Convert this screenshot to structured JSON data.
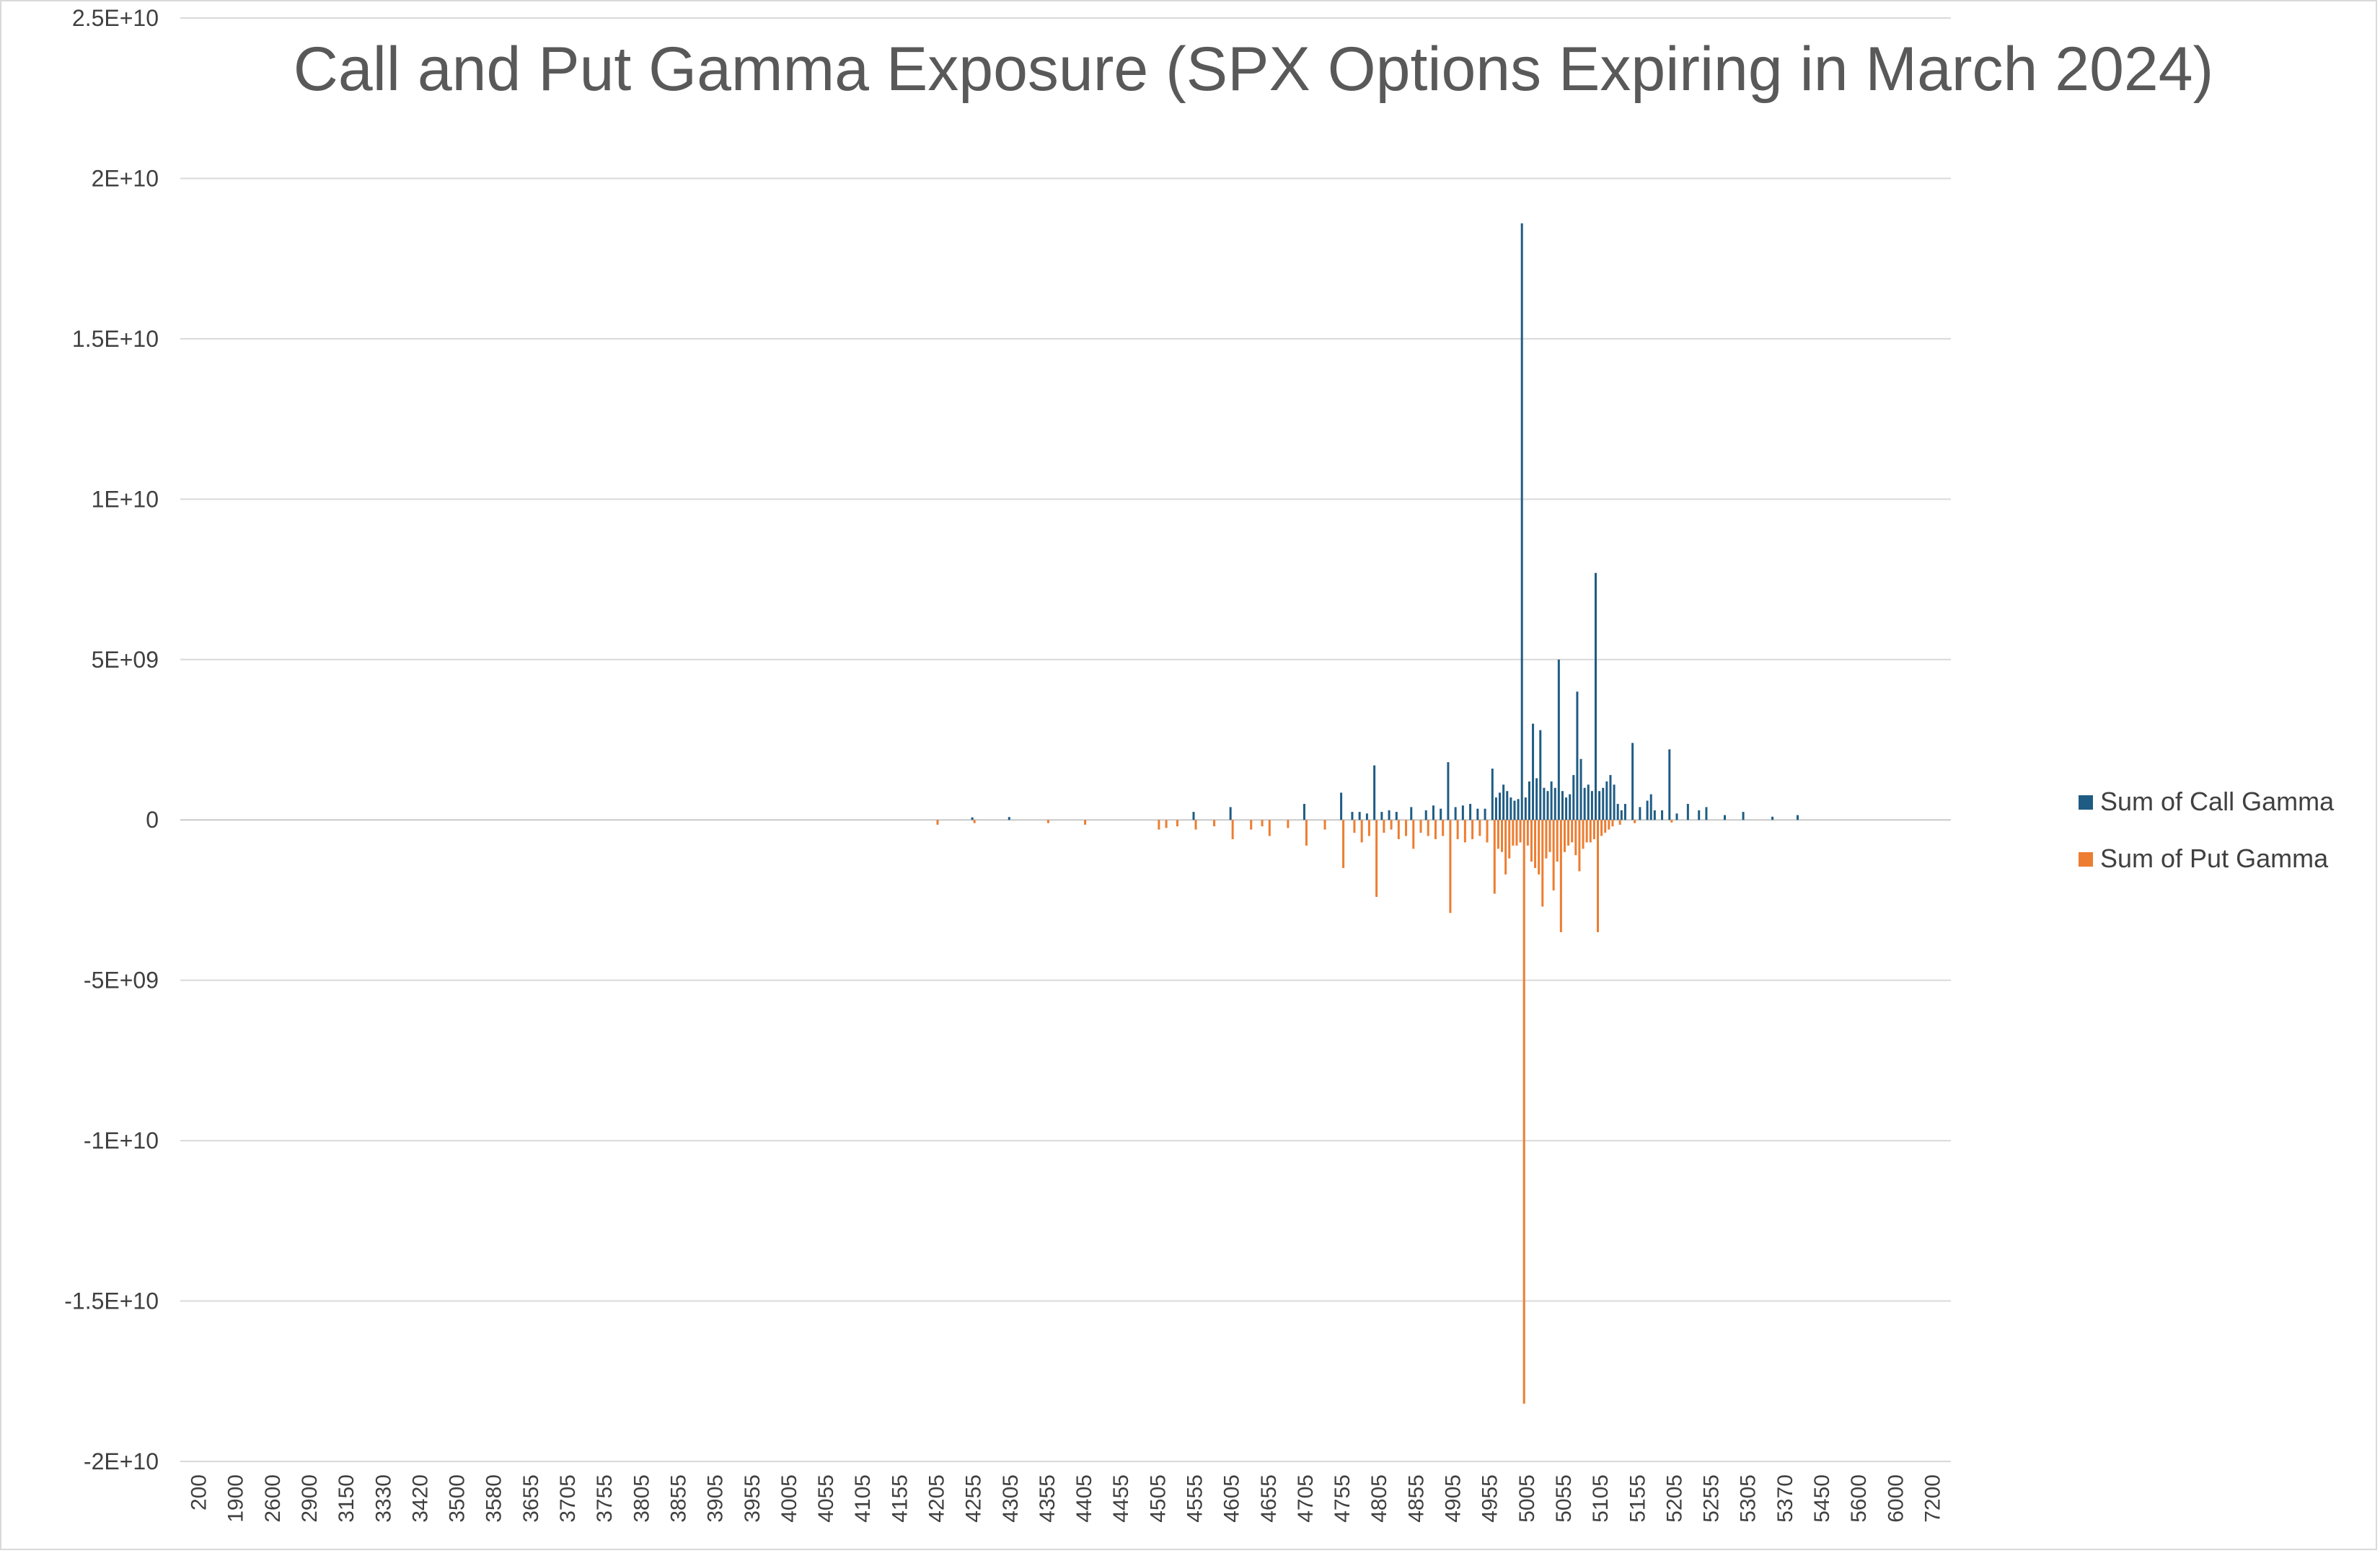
{
  "chart_data": {
    "type": "bar",
    "title": "Call and Put Gamma  Exposure (SPX Options Expiring in March 2024)",
    "xlabel": "",
    "ylabel": "",
    "ylim": [
      -20000000000,
      25000000000
    ],
    "y_ticks": [
      {
        "value": 25000000000,
        "label": "2.5E+10"
      },
      {
        "value": 20000000000,
        "label": "2E+10"
      },
      {
        "value": 15000000000,
        "label": "1.5E+10"
      },
      {
        "value": 10000000000,
        "label": "1E+10"
      },
      {
        "value": 5000000000,
        "label": "5E+09"
      },
      {
        "value": 0,
        "label": "0"
      },
      {
        "value": -5000000000,
        "label": "-5E+09"
      },
      {
        "value": -10000000000,
        "label": "-1E+10"
      },
      {
        "value": -15000000000,
        "label": "-1.5E+10"
      },
      {
        "value": -20000000000,
        "label": "-2E+10"
      }
    ],
    "x_tick_labels": [
      "200",
      "1900",
      "2600",
      "2900",
      "3150",
      "3330",
      "3420",
      "3500",
      "3580",
      "3655",
      "3705",
      "3755",
      "3805",
      "3855",
      "3905",
      "3955",
      "4005",
      "4055",
      "4105",
      "4155",
      "4205",
      "4255",
      "4305",
      "4355",
      "4405",
      "4455",
      "4505",
      "4555",
      "4605",
      "4655",
      "4705",
      "4755",
      "4805",
      "4855",
      "4905",
      "4955",
      "5005",
      "5055",
      "5105",
      "5155",
      "5205",
      "5255",
      "5305",
      "5370",
      "5450",
      "5600",
      "6000",
      "7200"
    ],
    "grid": true,
    "legend_position": "right",
    "series": [
      {
        "name": "Sum of Call Gamma",
        "color": "#1f5c84",
        "points": [
          {
            "x": 4255,
            "y": 80000000
          },
          {
            "x": 4305,
            "y": 90000000
          },
          {
            "x": 4555,
            "y": 250000000
          },
          {
            "x": 4605,
            "y": 400000000
          },
          {
            "x": 4705,
            "y": 500000000
          },
          {
            "x": 4755,
            "y": 850000000
          },
          {
            "x": 4770,
            "y": 250000000
          },
          {
            "x": 4780,
            "y": 250000000
          },
          {
            "x": 4790,
            "y": 200000000
          },
          {
            "x": 4800,
            "y": 1700000000
          },
          {
            "x": 4810,
            "y": 250000000
          },
          {
            "x": 4820,
            "y": 300000000
          },
          {
            "x": 4830,
            "y": 250000000
          },
          {
            "x": 4850,
            "y": 400000000
          },
          {
            "x": 4870,
            "y": 300000000
          },
          {
            "x": 4880,
            "y": 450000000
          },
          {
            "x": 4890,
            "y": 350000000
          },
          {
            "x": 4900,
            "y": 1800000000
          },
          {
            "x": 4910,
            "y": 400000000
          },
          {
            "x": 4920,
            "y": 450000000
          },
          {
            "x": 4930,
            "y": 500000000
          },
          {
            "x": 4940,
            "y": 350000000
          },
          {
            "x": 4950,
            "y": 350000000
          },
          {
            "x": 4960,
            "y": 1600000000
          },
          {
            "x": 4965,
            "y": 700000000
          },
          {
            "x": 4970,
            "y": 850000000
          },
          {
            "x": 4975,
            "y": 1100000000
          },
          {
            "x": 4980,
            "y": 900000000
          },
          {
            "x": 4985,
            "y": 700000000
          },
          {
            "x": 4990,
            "y": 600000000
          },
          {
            "x": 4995,
            "y": 650000000
          },
          {
            "x": 5000,
            "y": 18600000000
          },
          {
            "x": 5005,
            "y": 700000000
          },
          {
            "x": 5010,
            "y": 1200000000
          },
          {
            "x": 5015,
            "y": 3000000000
          },
          {
            "x": 5020,
            "y": 1300000000
          },
          {
            "x": 5025,
            "y": 2800000000
          },
          {
            "x": 5030,
            "y": 1000000000
          },
          {
            "x": 5035,
            "y": 900000000
          },
          {
            "x": 5040,
            "y": 1200000000
          },
          {
            "x": 5045,
            "y": 1000000000
          },
          {
            "x": 5050,
            "y": 5000000000
          },
          {
            "x": 5055,
            "y": 900000000
          },
          {
            "x": 5060,
            "y": 700000000
          },
          {
            "x": 5065,
            "y": 800000000
          },
          {
            "x": 5070,
            "y": 1400000000
          },
          {
            "x": 5075,
            "y": 4000000000
          },
          {
            "x": 5080,
            "y": 1900000000
          },
          {
            "x": 5085,
            "y": 1000000000
          },
          {
            "x": 5090,
            "y": 1100000000
          },
          {
            "x": 5095,
            "y": 900000000
          },
          {
            "x": 5100,
            "y": 7700000000
          },
          {
            "x": 5105,
            "y": 900000000
          },
          {
            "x": 5110,
            "y": 1000000000
          },
          {
            "x": 5115,
            "y": 1200000000
          },
          {
            "x": 5120,
            "y": 1400000000
          },
          {
            "x": 5125,
            "y": 1100000000
          },
          {
            "x": 5130,
            "y": 500000000
          },
          {
            "x": 5135,
            "y": 300000000
          },
          {
            "x": 5140,
            "y": 500000000
          },
          {
            "x": 5150,
            "y": 2400000000
          },
          {
            "x": 5160,
            "y": 400000000
          },
          {
            "x": 5170,
            "y": 600000000
          },
          {
            "x": 5175,
            "y": 800000000
          },
          {
            "x": 5180,
            "y": 300000000
          },
          {
            "x": 5190,
            "y": 300000000
          },
          {
            "x": 5200,
            "y": 2200000000
          },
          {
            "x": 5210,
            "y": 200000000
          },
          {
            "x": 5225,
            "y": 500000000
          },
          {
            "x": 5240,
            "y": 300000000
          },
          {
            "x": 5250,
            "y": 400000000
          },
          {
            "x": 5275,
            "y": 150000000
          },
          {
            "x": 5300,
            "y": 250000000
          },
          {
            "x": 5350,
            "y": 100000000
          },
          {
            "x": 5400,
            "y": 150000000
          }
        ]
      },
      {
        "name": "Sum of Put Gamma",
        "color": "#ed7d31",
        "points": [
          {
            "x": 4205,
            "y": -150000000
          },
          {
            "x": 4255,
            "y": -100000000
          },
          {
            "x": 4355,
            "y": -100000000
          },
          {
            "x": 4405,
            "y": -150000000
          },
          {
            "x": 4505,
            "y": -300000000
          },
          {
            "x": 4515,
            "y": -250000000
          },
          {
            "x": 4530,
            "y": -200000000
          },
          {
            "x": 4555,
            "y": -300000000
          },
          {
            "x": 4580,
            "y": -200000000
          },
          {
            "x": 4605,
            "y": -600000000
          },
          {
            "x": 4630,
            "y": -300000000
          },
          {
            "x": 4645,
            "y": -200000000
          },
          {
            "x": 4655,
            "y": -500000000
          },
          {
            "x": 4680,
            "y": -250000000
          },
          {
            "x": 4705,
            "y": -800000000
          },
          {
            "x": 4730,
            "y": -300000000
          },
          {
            "x": 4755,
            "y": -1500000000
          },
          {
            "x": 4770,
            "y": -400000000
          },
          {
            "x": 4780,
            "y": -700000000
          },
          {
            "x": 4790,
            "y": -500000000
          },
          {
            "x": 4800,
            "y": -2400000000
          },
          {
            "x": 4810,
            "y": -400000000
          },
          {
            "x": 4820,
            "y": -300000000
          },
          {
            "x": 4830,
            "y": -600000000
          },
          {
            "x": 4840,
            "y": -500000000
          },
          {
            "x": 4850,
            "y": -900000000
          },
          {
            "x": 4860,
            "y": -400000000
          },
          {
            "x": 4870,
            "y": -500000000
          },
          {
            "x": 4880,
            "y": -600000000
          },
          {
            "x": 4890,
            "y": -500000000
          },
          {
            "x": 4900,
            "y": -2900000000
          },
          {
            "x": 4910,
            "y": -600000000
          },
          {
            "x": 4920,
            "y": -700000000
          },
          {
            "x": 4930,
            "y": -600000000
          },
          {
            "x": 4940,
            "y": -500000000
          },
          {
            "x": 4950,
            "y": -700000000
          },
          {
            "x": 4960,
            "y": -2300000000
          },
          {
            "x": 4965,
            "y": -900000000
          },
          {
            "x": 4970,
            "y": -1000000000
          },
          {
            "x": 4975,
            "y": -1700000000
          },
          {
            "x": 4980,
            "y": -1200000000
          },
          {
            "x": 4985,
            "y": -800000000
          },
          {
            "x": 4990,
            "y": -800000000
          },
          {
            "x": 4995,
            "y": -700000000
          },
          {
            "x": 5000,
            "y": -18200000000
          },
          {
            "x": 5005,
            "y": -800000000
          },
          {
            "x": 5010,
            "y": -1300000000
          },
          {
            "x": 5015,
            "y": -1500000000
          },
          {
            "x": 5020,
            "y": -1700000000
          },
          {
            "x": 5025,
            "y": -2700000000
          },
          {
            "x": 5030,
            "y": -1200000000
          },
          {
            "x": 5035,
            "y": -1000000000
          },
          {
            "x": 5040,
            "y": -2200000000
          },
          {
            "x": 5045,
            "y": -1300000000
          },
          {
            "x": 5050,
            "y": -3500000000
          },
          {
            "x": 5055,
            "y": -1000000000
          },
          {
            "x": 5060,
            "y": -800000000
          },
          {
            "x": 5065,
            "y": -700000000
          },
          {
            "x": 5070,
            "y": -1100000000
          },
          {
            "x": 5075,
            "y": -1600000000
          },
          {
            "x": 5080,
            "y": -900000000
          },
          {
            "x": 5085,
            "y": -700000000
          },
          {
            "x": 5090,
            "y": -700000000
          },
          {
            "x": 5095,
            "y": -600000000
          },
          {
            "x": 5100,
            "y": -3500000000
          },
          {
            "x": 5105,
            "y": -500000000
          },
          {
            "x": 5110,
            "y": -400000000
          },
          {
            "x": 5115,
            "y": -300000000
          },
          {
            "x": 5120,
            "y": -200000000
          },
          {
            "x": 5130,
            "y": -150000000
          },
          {
            "x": 5150,
            "y": -100000000
          },
          {
            "x": 5200,
            "y": -80000000
          }
        ]
      }
    ]
  }
}
